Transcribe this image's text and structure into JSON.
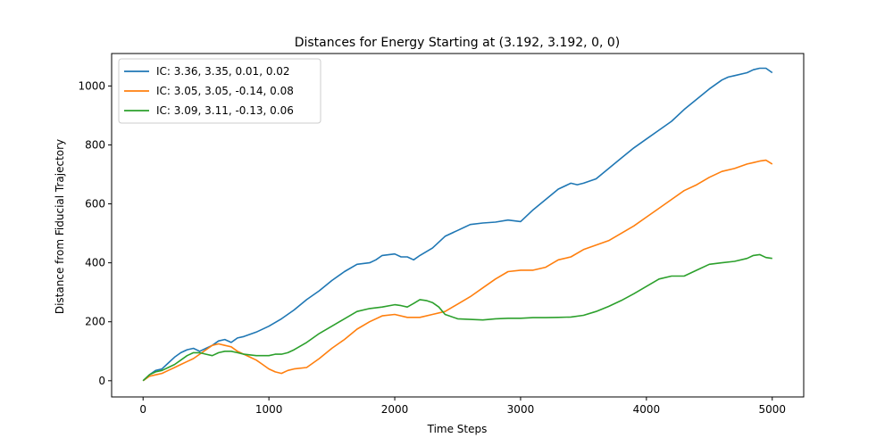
{
  "chart_data": {
    "type": "line",
    "title": "Distances for Energy Starting at (3.192, 3.192, 0, 0)",
    "xlabel": "Time Steps",
    "ylabel": "Distance from Fiducial Trajectory",
    "xlim": [
      -250,
      5250
    ],
    "ylim": [
      -55,
      1110
    ],
    "xticks": [
      0,
      1000,
      2000,
      3000,
      4000,
      5000
    ],
    "yticks": [
      0,
      200,
      400,
      600,
      800,
      1000
    ],
    "grid": false,
    "legend_position": "top-left",
    "series": [
      {
        "name": "IC: 3.36, 3.35, 0.01, 0.02",
        "color": "#1f77b4",
        "x": [
          0,
          50,
          100,
          150,
          200,
          250,
          300,
          350,
          400,
          450,
          500,
          550,
          600,
          650,
          700,
          750,
          800,
          900,
          1000,
          1100,
          1200,
          1300,
          1400,
          1500,
          1600,
          1700,
          1800,
          1850,
          1900,
          2000,
          2050,
          2100,
          2150,
          2200,
          2300,
          2400,
          2500,
          2600,
          2700,
          2800,
          2900,
          3000,
          3100,
          3200,
          3300,
          3400,
          3450,
          3500,
          3600,
          3700,
          3800,
          3900,
          4000,
          4100,
          4200,
          4300,
          4400,
          4500,
          4600,
          4650,
          4700,
          4800,
          4850,
          4900,
          4950,
          5000
        ],
        "y": [
          0,
          20,
          35,
          40,
          60,
          80,
          95,
          105,
          110,
          100,
          110,
          120,
          135,
          140,
          130,
          145,
          150,
          165,
          185,
          210,
          240,
          275,
          305,
          340,
          370,
          395,
          400,
          410,
          425,
          430,
          420,
          420,
          410,
          425,
          450,
          490,
          510,
          530,
          535,
          538,
          545,
          540,
          580,
          615,
          650,
          670,
          665,
          670,
          685,
          720,
          755,
          790,
          820,
          850,
          880,
          920,
          955,
          990,
          1020,
          1030,
          1035,
          1045,
          1055,
          1060,
          1060,
          1045
        ]
      },
      {
        "name": "IC: 3.05, 3.05, -0.14, 0.08",
        "color": "#ff7f0e",
        "x": [
          0,
          50,
          100,
          150,
          200,
          250,
          300,
          350,
          400,
          450,
          500,
          550,
          600,
          650,
          700,
          750,
          800,
          850,
          900,
          950,
          1000,
          1050,
          1100,
          1150,
          1200,
          1300,
          1400,
          1500,
          1600,
          1700,
          1800,
          1900,
          2000,
          2100,
          2200,
          2300,
          2400,
          2500,
          2600,
          2700,
          2800,
          2900,
          3000,
          3100,
          3200,
          3300,
          3400,
          3500,
          3600,
          3700,
          3800,
          3900,
          4000,
          4100,
          4200,
          4300,
          4400,
          4500,
          4600,
          4700,
          4800,
          4850,
          4900,
          4950,
          5000
        ],
        "y": [
          0,
          15,
          20,
          25,
          35,
          45,
          55,
          65,
          75,
          90,
          105,
          120,
          125,
          120,
          115,
          100,
          90,
          80,
          70,
          55,
          40,
          30,
          25,
          35,
          40,
          45,
          75,
          110,
          140,
          175,
          200,
          220,
          225,
          215,
          215,
          225,
          235,
          260,
          285,
          315,
          345,
          370,
          375,
          375,
          385,
          410,
          420,
          445,
          460,
          475,
          500,
          525,
          555,
          585,
          615,
          645,
          665,
          690,
          710,
          720,
          735,
          740,
          745,
          748,
          735
        ]
      },
      {
        "name": "IC: 3.09, 3.11, -0.13, 0.06",
        "color": "#2ca02c",
        "x": [
          0,
          50,
          100,
          150,
          200,
          250,
          300,
          350,
          400,
          450,
          500,
          550,
          600,
          650,
          700,
          750,
          800,
          900,
          1000,
          1050,
          1100,
          1150,
          1200,
          1300,
          1400,
          1500,
          1600,
          1700,
          1800,
          1900,
          2000,
          2050,
          2100,
          2150,
          2200,
          2250,
          2300,
          2350,
          2400,
          2500,
          2600,
          2700,
          2800,
          2900,
          3000,
          3100,
          3200,
          3300,
          3400,
          3500,
          3600,
          3700,
          3800,
          3900,
          4000,
          4100,
          4200,
          4300,
          4400,
          4500,
          4600,
          4700,
          4800,
          4850,
          4900,
          4950,
          5000
        ],
        "y": [
          0,
          20,
          30,
          35,
          45,
          55,
          70,
          85,
          95,
          95,
          90,
          85,
          95,
          100,
          100,
          95,
          90,
          85,
          85,
          90,
          90,
          95,
          105,
          130,
          160,
          185,
          210,
          235,
          245,
          250,
          258,
          255,
          250,
          262,
          275,
          272,
          265,
          250,
          225,
          210,
          208,
          206,
          210,
          212,
          212,
          214,
          214,
          215,
          216,
          222,
          235,
          252,
          272,
          295,
          320,
          345,
          355,
          355,
          375,
          395,
          400,
          405,
          415,
          425,
          428,
          418,
          415
        ]
      }
    ]
  }
}
